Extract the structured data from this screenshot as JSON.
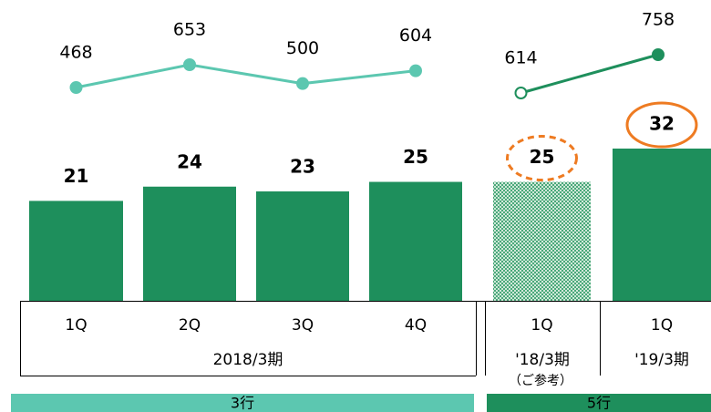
{
  "chart_data": {
    "type": "bar",
    "categories": [
      "1Q",
      "2Q",
      "3Q",
      "4Q",
      "1Q",
      "1Q"
    ],
    "values": [
      21,
      24,
      23,
      25,
      25,
      32
    ],
    "color": "#1e8f5c",
    "hatched_index": 4,
    "highlights": [
      {
        "index": 4,
        "style": "dashed",
        "color": "#ee7b22"
      },
      {
        "index": 5,
        "style": "solid",
        "color": "#ee7b22"
      }
    ],
    "lines": [
      {
        "color": "#5cc7b0",
        "values": [
          468,
          653,
          500,
          604
        ]
      },
      {
        "color": "#1e8f5c",
        "values": [
          614,
          758
        ],
        "hollow_first": true
      }
    ],
    "groups": [
      {
        "label": "2018/3期",
        "band": "3行",
        "band_color": "#5cc7b0"
      },
      {
        "label": "'18/3期",
        "note": "（ご参考）",
        "band": "5行",
        "band_color": "#1e8f5c"
      },
      {
        "label": "'19/3期"
      }
    ]
  }
}
